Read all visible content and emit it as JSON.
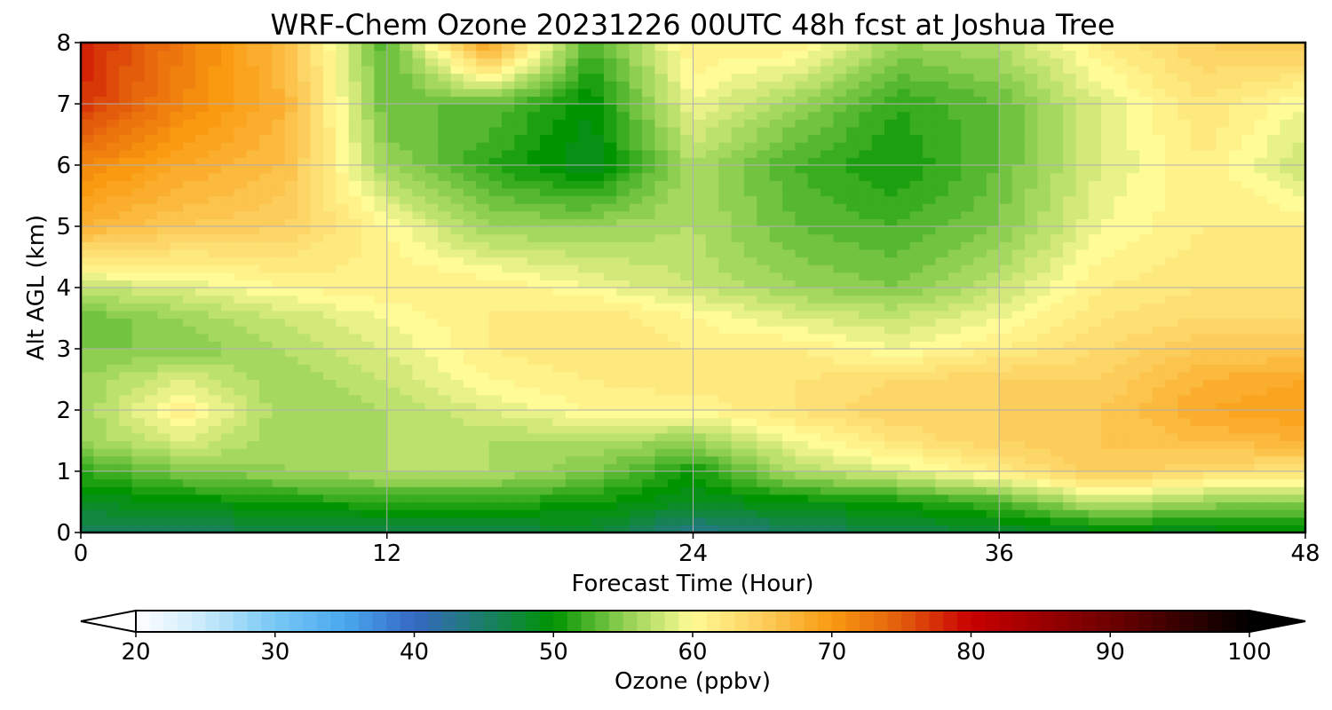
{
  "chart_data": {
    "type": "heatmap",
    "title": "WRF-Chem Ozone  20231226 00UTC 48h fcst at Joshua Tree",
    "xlabel": "Forecast Time (Hour)",
    "ylabel": "Alt AGL (km)",
    "xlim": [
      0,
      48
    ],
    "ylim": [
      0,
      8
    ],
    "xticks": [
      0,
      12,
      24,
      36,
      48
    ],
    "yticks": [
      0,
      1,
      2,
      3,
      4,
      5,
      6,
      7,
      8
    ],
    "grid": true,
    "x": [
      0,
      4,
      8,
      12,
      16,
      20,
      24,
      28,
      32,
      36,
      40,
      44,
      48
    ],
    "y": [
      0,
      0.5,
      1,
      1.5,
      2,
      2.5,
      3,
      3.5,
      4,
      5,
      6,
      7,
      8
    ],
    "z": [
      [
        46,
        46,
        47,
        47,
        47,
        48,
        44,
        46,
        47,
        48,
        49,
        49,
        50
      ],
      [
        49,
        50,
        51,
        52,
        52,
        51,
        49,
        50,
        51,
        53,
        58,
        56,
        55
      ],
      [
        52,
        55,
        56,
        57,
        57,
        55,
        51,
        57,
        59,
        62,
        66,
        64,
        63
      ],
      [
        56,
        59,
        56,
        57,
        57,
        57,
        56,
        60,
        63,
        65,
        66,
        67,
        68
      ],
      [
        56,
        62,
        56,
        57,
        59,
        61,
        61,
        63,
        65,
        65,
        66,
        69,
        70
      ],
      [
        56,
        59,
        56,
        58,
        61,
        62,
        63,
        63,
        64,
        65,
        65,
        68,
        69
      ],
      [
        55,
        55,
        57,
        59,
        62,
        63,
        62,
        62,
        60,
        62,
        64,
        66,
        66
      ],
      [
        54,
        56,
        58,
        60,
        62,
        63,
        61,
        59,
        58,
        60,
        63,
        64,
        64
      ],
      [
        58,
        59,
        61,
        62,
        62,
        60,
        58,
        56,
        55,
        58,
        62,
        63,
        63
      ],
      [
        68,
        66,
        65,
        61,
        56,
        56,
        57,
        54,
        53,
        55,
        60,
        62,
        62
      ],
      [
        72,
        69,
        67,
        56,
        52,
        49,
        57,
        53,
        51,
        54,
        59,
        62,
        58
      ],
      [
        78,
        72,
        68,
        54,
        54,
        50,
        60,
        56,
        52,
        54,
        59,
        63,
        60
      ],
      [
        79,
        73,
        67,
        53,
        70,
        53,
        62,
        62,
        56,
        57,
        62,
        65,
        66
      ]
    ],
    "colorbar": {
      "label": "Ozone  (ppbv)",
      "min": 20,
      "max": 100,
      "ticks": [
        20,
        30,
        40,
        50,
        60,
        70,
        80,
        90,
        100
      ],
      "extend": "both",
      "stops": [
        {
          "v": 20,
          "c": "#ffffff"
        },
        {
          "v": 25,
          "c": "#c6e9fa"
        },
        {
          "v": 30,
          "c": "#78c8f5"
        },
        {
          "v": 35,
          "c": "#4aa8ee"
        },
        {
          "v": 40,
          "c": "#3568c4"
        },
        {
          "v": 45,
          "c": "#1c7e6a"
        },
        {
          "v": 50,
          "c": "#009400"
        },
        {
          "v": 55,
          "c": "#8fcf50"
        },
        {
          "v": 60,
          "c": "#fffb96"
        },
        {
          "v": 65,
          "c": "#fdcd5c"
        },
        {
          "v": 70,
          "c": "#f99a10"
        },
        {
          "v": 75,
          "c": "#e35c0c"
        },
        {
          "v": 80,
          "c": "#c80000"
        },
        {
          "v": 90,
          "c": "#6e0000"
        },
        {
          "v": 100,
          "c": "#000000"
        }
      ]
    }
  }
}
